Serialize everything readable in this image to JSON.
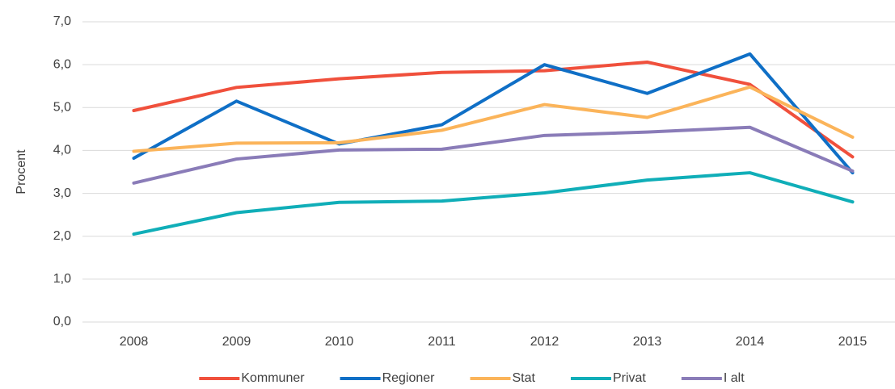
{
  "chart_data": {
    "type": "line",
    "y_label": "Procent",
    "categories": [
      "2008",
      "2009",
      "2010",
      "2011",
      "2012",
      "2013",
      "2014",
      "2015"
    ],
    "series": [
      {
        "name": "Kommuner",
        "color": "#f0503c",
        "values": [
          4.93,
          5.47,
          5.67,
          5.82,
          5.86,
          6.06,
          5.54,
          3.85
        ]
      },
      {
        "name": "Regioner",
        "color": "#0f6fc6",
        "values": [
          3.82,
          5.15,
          4.15,
          4.6,
          6.0,
          5.33,
          6.25,
          3.48
        ]
      },
      {
        "name": "Stat",
        "color": "#fbb45a",
        "values": [
          3.98,
          4.17,
          4.18,
          4.47,
          5.07,
          4.77,
          5.48,
          4.31
        ]
      },
      {
        "name": "Privat",
        "color": "#10aeb8",
        "values": [
          2.05,
          2.55,
          2.79,
          2.82,
          3.01,
          3.31,
          3.48,
          2.8
        ]
      },
      {
        "name": "I alt",
        "color": "#8a7cb8",
        "values": [
          3.24,
          3.8,
          4.01,
          4.03,
          4.35,
          4.43,
          4.54,
          3.52
        ]
      }
    ],
    "ylim": [
      0,
      7
    ],
    "yticks": [
      {
        "value": 0,
        "label": "0,0"
      },
      {
        "value": 1,
        "label": "1,0"
      },
      {
        "value": 2,
        "label": "2,0"
      },
      {
        "value": 3,
        "label": "3,0"
      },
      {
        "value": 4,
        "label": "4,0"
      },
      {
        "value": 5,
        "label": "5,0"
      },
      {
        "value": 6,
        "label": "6,0"
      },
      {
        "value": 7,
        "label": "7,0"
      }
    ],
    "grid": true,
    "legend": "bottom"
  }
}
